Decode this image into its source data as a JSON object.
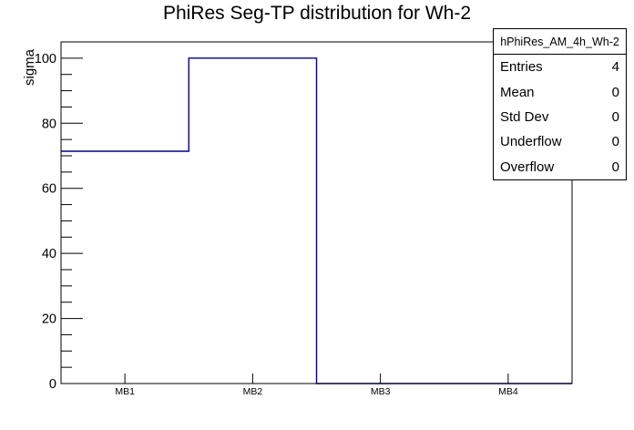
{
  "chart_data": {
    "type": "bar",
    "subtype": "step-histogram-outline",
    "title": "PhiRes Seg-TP distribution for Wh-2",
    "xlabel": "",
    "ylabel": "sigma",
    "categories": [
      "MB1",
      "MB2",
      "MB3",
      "MB4"
    ],
    "values": [
      71.4,
      100,
      0,
      0
    ],
    "ylim": [
      0,
      105
    ],
    "yticks": [
      0,
      20,
      40,
      60,
      80,
      100
    ],
    "minor_tick_step": 5,
    "grid": "off",
    "legend": "none",
    "line_color": "#00008b",
    "axis_color": "#000000",
    "background_color": "#ffffff"
  },
  "stats_box": {
    "title": "hPhiRes_AM_4h_Wh-2",
    "rows": [
      {
        "label": "Entries",
        "value": "4"
      },
      {
        "label": "Mean",
        "value": "0"
      },
      {
        "label": "Std Dev",
        "value": "0"
      },
      {
        "label": "Underflow",
        "value": "0"
      },
      {
        "label": "Overflow",
        "value": "0"
      }
    ]
  }
}
